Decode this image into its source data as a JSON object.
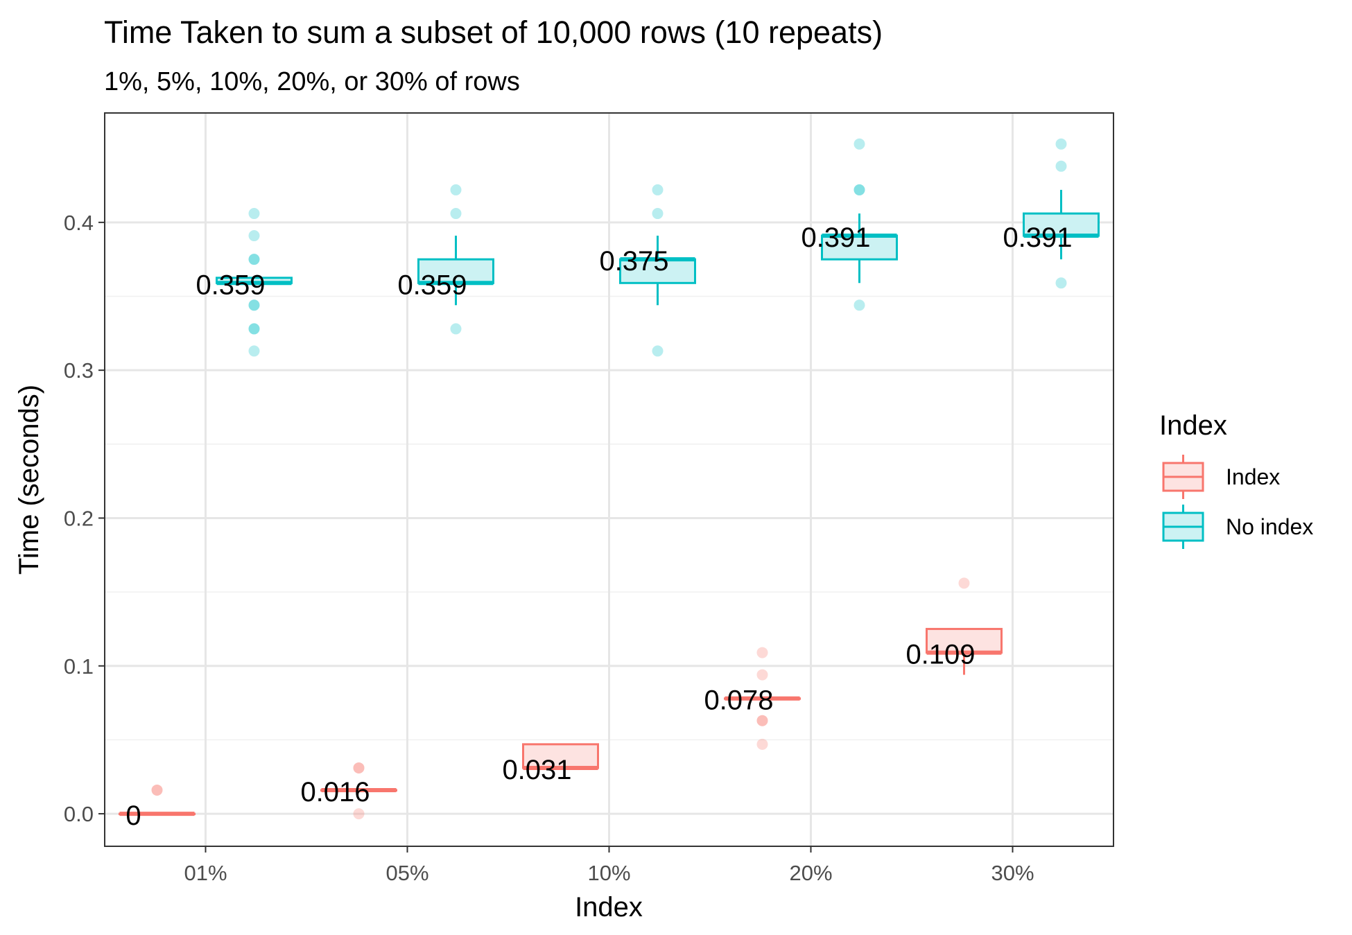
{
  "chart_data": {
    "type": "box",
    "title": "Time Taken to sum a subset of 10,000 rows (10 repeats)",
    "subtitle": "1%, 5%, 10%, 20%, or 30% of rows",
    "xlabel": "Index",
    "ylabel": "Time (seconds)",
    "categories": [
      "01%",
      "05%",
      "10%",
      "20%",
      "30%"
    ],
    "ylim": [
      -0.022,
      0.474
    ],
    "y_ticks": [
      0.0,
      0.1,
      0.2,
      0.3,
      0.4
    ],
    "y_tick_labels": [
      "0.0",
      "0.1",
      "0.2",
      "0.3",
      "0.4"
    ],
    "grid": true,
    "legend": {
      "title": "Index",
      "position": "right",
      "entries": [
        "Index",
        "No index"
      ]
    },
    "colors": {
      "Index": "#F8766D",
      "No index": "#00BFC4",
      "Index_fill": "#FDE3E1",
      "No index_fill": "#CCF2F3"
    },
    "series": [
      {
        "name": "Index",
        "boxes": [
          {
            "category": "01%",
            "whisker_low": 0.0,
            "q1": 0.0,
            "median": 0.0,
            "q3": 0.0,
            "whisker_high": 0.0,
            "outliers": [
              0.016,
              0.016
            ],
            "median_label": "0"
          },
          {
            "category": "05%",
            "whisker_low": 0.016,
            "q1": 0.016,
            "median": 0.016,
            "q3": 0.016,
            "whisker_high": 0.016,
            "outliers": [
              0.031,
              0.031,
              0.0
            ],
            "median_label": "0.016"
          },
          {
            "category": "10%",
            "whisker_low": 0.031,
            "q1": 0.031,
            "median": 0.031,
            "q3": 0.047,
            "whisker_high": 0.047,
            "outliers": [],
            "median_label": "0.031"
          },
          {
            "category": "20%",
            "whisker_low": 0.078,
            "q1": 0.078,
            "median": 0.078,
            "q3": 0.078,
            "whisker_high": 0.078,
            "outliers": [
              0.109,
              0.094,
              0.063,
              0.063,
              0.047
            ],
            "median_label": "0.078"
          },
          {
            "category": "30%",
            "whisker_low": 0.094,
            "q1": 0.109,
            "median": 0.109,
            "q3": 0.125,
            "whisker_high": 0.125,
            "outliers": [
              0.156
            ],
            "median_label": "0.109"
          }
        ]
      },
      {
        "name": "No index",
        "boxes": [
          {
            "category": "01%",
            "whisker_low": 0.359,
            "q1": 0.359,
            "median": 0.359,
            "q3": 0.3625,
            "whisker_high": 0.3625,
            "outliers": [
              0.406,
              0.391,
              0.375,
              0.375,
              0.344,
              0.344,
              0.328,
              0.328,
              0.313
            ],
            "median_label": "0.359"
          },
          {
            "category": "05%",
            "whisker_low": 0.344,
            "q1": 0.359,
            "median": 0.359,
            "q3": 0.375,
            "whisker_high": 0.391,
            "outliers": [
              0.422,
              0.406,
              0.328
            ],
            "median_label": "0.359"
          },
          {
            "category": "10%",
            "whisker_low": 0.344,
            "q1": 0.359,
            "median": 0.375,
            "q3": 0.375,
            "whisker_high": 0.391,
            "outliers": [
              0.422,
              0.406,
              0.313
            ],
            "median_label": "0.375"
          },
          {
            "category": "20%",
            "whisker_low": 0.359,
            "q1": 0.375,
            "median": 0.391,
            "q3": 0.391,
            "whisker_high": 0.406,
            "outliers": [
              0.453,
              0.422,
              0.422,
              0.344
            ],
            "median_label": "0.391"
          },
          {
            "category": "30%",
            "whisker_low": 0.375,
            "q1": 0.391,
            "median": 0.391,
            "q3": 0.406,
            "whisker_high": 0.422,
            "outliers": [
              0.453,
              0.438,
              0.359
            ],
            "median_label": "0.391"
          }
        ]
      }
    ]
  }
}
